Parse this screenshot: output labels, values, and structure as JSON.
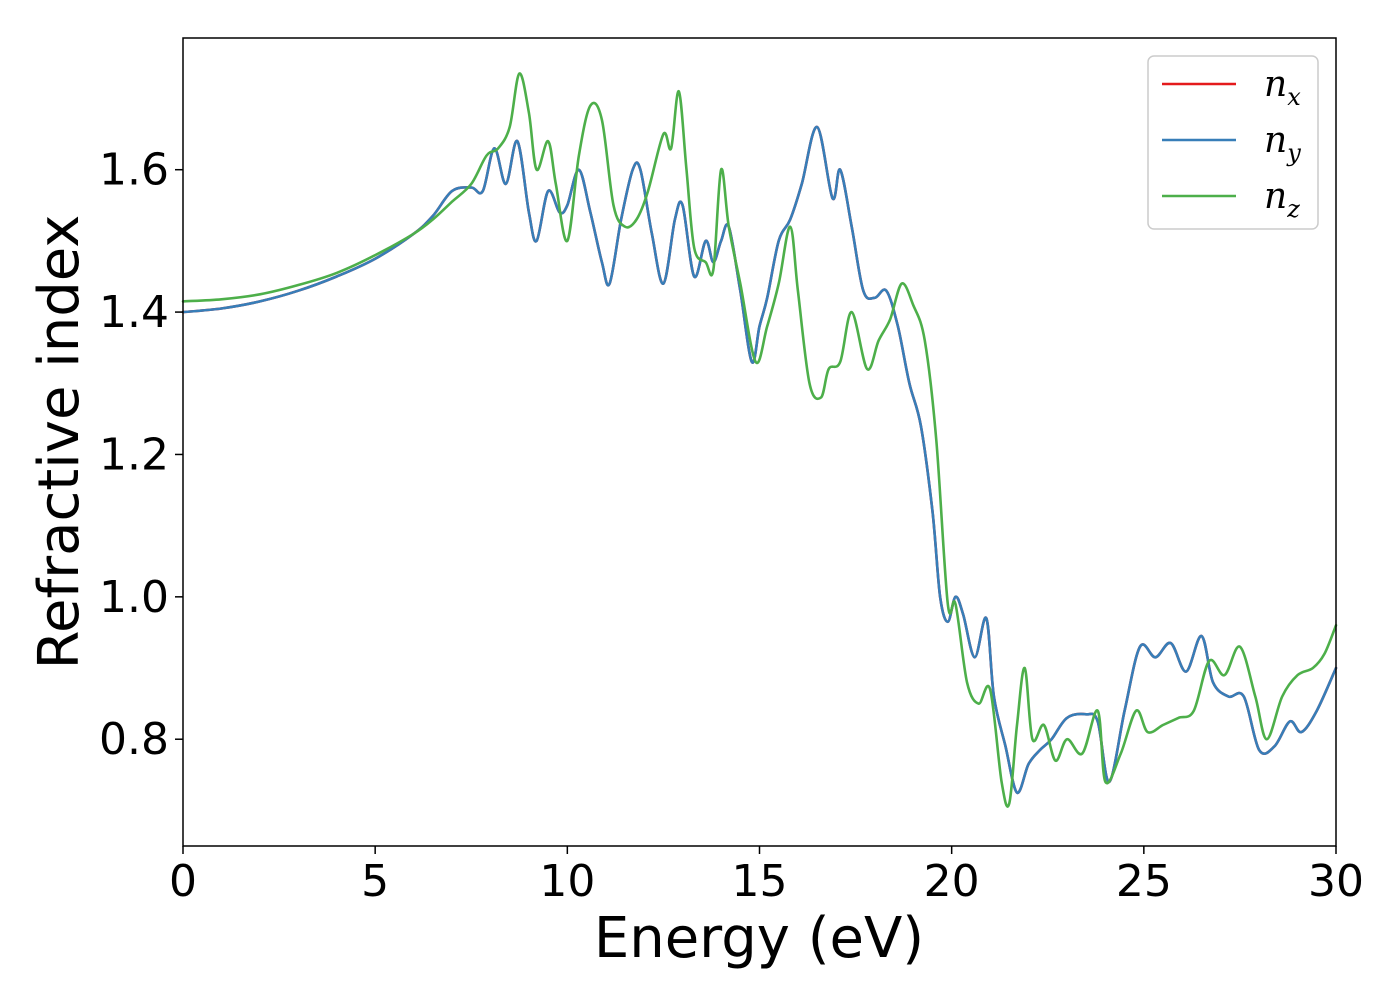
{
  "chart_data": {
    "type": "line",
    "xlabel": "Energy (eV)",
    "ylabel": "Refractive index",
    "xlim": [
      0,
      30
    ],
    "ylim": [
      0.65,
      1.785
    ],
    "x_ticks": [
      0,
      5,
      10,
      15,
      20,
      25,
      30
    ],
    "x_tick_labels": [
      "0",
      "5",
      "10",
      "15",
      "20",
      "25",
      "30"
    ],
    "y_ticks": [
      0.8,
      1.0,
      1.2,
      1.4,
      1.6
    ],
    "y_tick_labels": [
      "0.8",
      "1.0",
      "1.2",
      "1.4",
      "1.6"
    ],
    "grid": false,
    "legend_position": "top-right",
    "series": [
      {
        "name": "n",
        "subscript": "x",
        "color": "#e41a1c",
        "x": [
          0,
          1,
          2,
          3,
          4,
          5,
          6,
          6.5,
          7,
          7.5,
          7.8,
          8.1,
          8.4,
          8.7,
          9.0,
          9.2,
          9.5,
          9.8,
          10.0,
          10.3,
          10.6,
          10.9,
          11.1,
          11.4,
          11.7,
          11.9,
          12.2,
          12.5,
          12.8,
          13.0,
          13.3,
          13.6,
          13.8,
          14.0,
          14.2,
          14.5,
          14.8,
          15.0,
          15.2,
          15.5,
          15.8,
          16.1,
          16.5,
          16.9,
          17.1,
          17.4,
          17.7,
          18.0,
          18.3,
          18.6,
          18.9,
          19.2,
          19.5,
          19.7,
          19.9,
          20.1,
          20.3,
          20.6,
          20.9,
          21.1,
          21.4,
          21.7,
          22.0,
          22.3,
          22.6,
          23.0,
          23.5,
          23.8,
          24.1,
          24.5,
          24.9,
          25.3,
          25.7,
          26.1,
          26.5,
          26.8,
          27.2,
          27.6,
          28.0,
          28.4,
          28.8,
          29.1,
          29.5,
          30.0
        ],
        "values": [
          1.4,
          1.405,
          1.415,
          1.43,
          1.45,
          1.475,
          1.51,
          1.535,
          1.57,
          1.575,
          1.57,
          1.63,
          1.58,
          1.64,
          1.54,
          1.5,
          1.57,
          1.54,
          1.55,
          1.6,
          1.54,
          1.47,
          1.44,
          1.53,
          1.6,
          1.6,
          1.51,
          1.44,
          1.53,
          1.55,
          1.45,
          1.5,
          1.47,
          1.5,
          1.52,
          1.43,
          1.33,
          1.38,
          1.42,
          1.5,
          1.53,
          1.58,
          1.66,
          1.56,
          1.6,
          1.52,
          1.43,
          1.42,
          1.43,
          1.38,
          1.3,
          1.24,
          1.12,
          1.0,
          0.965,
          1.0,
          0.975,
          0.915,
          0.97,
          0.86,
          0.79,
          0.725,
          0.765,
          0.785,
          0.8,
          0.83,
          0.835,
          0.825,
          0.74,
          0.84,
          0.93,
          0.915,
          0.935,
          0.895,
          0.945,
          0.88,
          0.86,
          0.86,
          0.785,
          0.79,
          0.825,
          0.81,
          0.84,
          0.9
        ]
      },
      {
        "name": "n",
        "subscript": "y",
        "color": "#377eb8",
        "x": [
          0,
          1,
          2,
          3,
          4,
          5,
          6,
          6.5,
          7,
          7.5,
          7.8,
          8.1,
          8.4,
          8.7,
          9.0,
          9.2,
          9.5,
          9.8,
          10.0,
          10.3,
          10.6,
          10.9,
          11.1,
          11.4,
          11.7,
          11.9,
          12.2,
          12.5,
          12.8,
          13.0,
          13.3,
          13.6,
          13.8,
          14.0,
          14.2,
          14.5,
          14.8,
          15.0,
          15.2,
          15.5,
          15.8,
          16.1,
          16.5,
          16.9,
          17.1,
          17.4,
          17.7,
          18.0,
          18.3,
          18.6,
          18.9,
          19.2,
          19.5,
          19.7,
          19.9,
          20.1,
          20.3,
          20.6,
          20.9,
          21.1,
          21.4,
          21.7,
          22.0,
          22.3,
          22.6,
          23.0,
          23.5,
          23.8,
          24.1,
          24.5,
          24.9,
          25.3,
          25.7,
          26.1,
          26.5,
          26.8,
          27.2,
          27.6,
          28.0,
          28.4,
          28.8,
          29.1,
          29.5,
          30.0
        ],
        "values": [
          1.4,
          1.405,
          1.415,
          1.43,
          1.45,
          1.475,
          1.51,
          1.535,
          1.57,
          1.575,
          1.57,
          1.63,
          1.58,
          1.64,
          1.54,
          1.5,
          1.57,
          1.54,
          1.55,
          1.6,
          1.54,
          1.47,
          1.44,
          1.53,
          1.6,
          1.6,
          1.51,
          1.44,
          1.53,
          1.55,
          1.45,
          1.5,
          1.47,
          1.5,
          1.52,
          1.43,
          1.33,
          1.38,
          1.42,
          1.5,
          1.53,
          1.58,
          1.66,
          1.56,
          1.6,
          1.52,
          1.43,
          1.42,
          1.43,
          1.38,
          1.3,
          1.24,
          1.12,
          1.0,
          0.965,
          1.0,
          0.975,
          0.915,
          0.97,
          0.86,
          0.79,
          0.725,
          0.765,
          0.785,
          0.8,
          0.83,
          0.835,
          0.825,
          0.74,
          0.84,
          0.93,
          0.915,
          0.935,
          0.895,
          0.945,
          0.88,
          0.86,
          0.86,
          0.785,
          0.79,
          0.825,
          0.81,
          0.84,
          0.9
        ]
      },
      {
        "name": "n",
        "subscript": "z",
        "color": "#4daf4a",
        "x": [
          0,
          1,
          2,
          3,
          4,
          5,
          6,
          6.5,
          7,
          7.5,
          7.9,
          8.2,
          8.5,
          8.75,
          9.0,
          9.2,
          9.5,
          9.7,
          10.0,
          10.3,
          10.6,
          10.9,
          11.2,
          11.5,
          11.8,
          12.1,
          12.5,
          12.7,
          12.9,
          13.1,
          13.3,
          13.6,
          13.8,
          14.0,
          14.2,
          14.5,
          14.9,
          15.2,
          15.5,
          15.8,
          16.0,
          16.3,
          16.6,
          16.8,
          17.1,
          17.4,
          17.8,
          18.1,
          18.4,
          18.7,
          19.0,
          19.3,
          19.6,
          19.9,
          20.1,
          20.4,
          20.7,
          21.0,
          21.3,
          21.5,
          21.7,
          21.9,
          22.1,
          22.4,
          22.7,
          23.0,
          23.4,
          23.8,
          24.0,
          24.4,
          24.8,
          25.1,
          25.5,
          25.9,
          26.3,
          26.7,
          27.1,
          27.5,
          27.9,
          28.2,
          28.6,
          29.0,
          29.4,
          29.7,
          30.0
        ],
        "values": [
          1.415,
          1.418,
          1.425,
          1.438,
          1.455,
          1.48,
          1.51,
          1.53,
          1.555,
          1.58,
          1.62,
          1.63,
          1.66,
          1.735,
          1.68,
          1.6,
          1.64,
          1.58,
          1.5,
          1.62,
          1.69,
          1.67,
          1.55,
          1.52,
          1.53,
          1.57,
          1.65,
          1.63,
          1.71,
          1.6,
          1.49,
          1.47,
          1.46,
          1.6,
          1.52,
          1.44,
          1.33,
          1.38,
          1.44,
          1.52,
          1.43,
          1.3,
          1.28,
          1.32,
          1.33,
          1.4,
          1.32,
          1.36,
          1.39,
          1.44,
          1.41,
          1.36,
          1.22,
          0.99,
          0.99,
          0.88,
          0.85,
          0.87,
          0.74,
          0.71,
          0.82,
          0.9,
          0.8,
          0.82,
          0.77,
          0.8,
          0.78,
          0.84,
          0.74,
          0.78,
          0.84,
          0.81,
          0.82,
          0.83,
          0.84,
          0.91,
          0.89,
          0.93,
          0.86,
          0.8,
          0.86,
          0.89,
          0.9,
          0.92,
          0.96
        ]
      }
    ]
  }
}
